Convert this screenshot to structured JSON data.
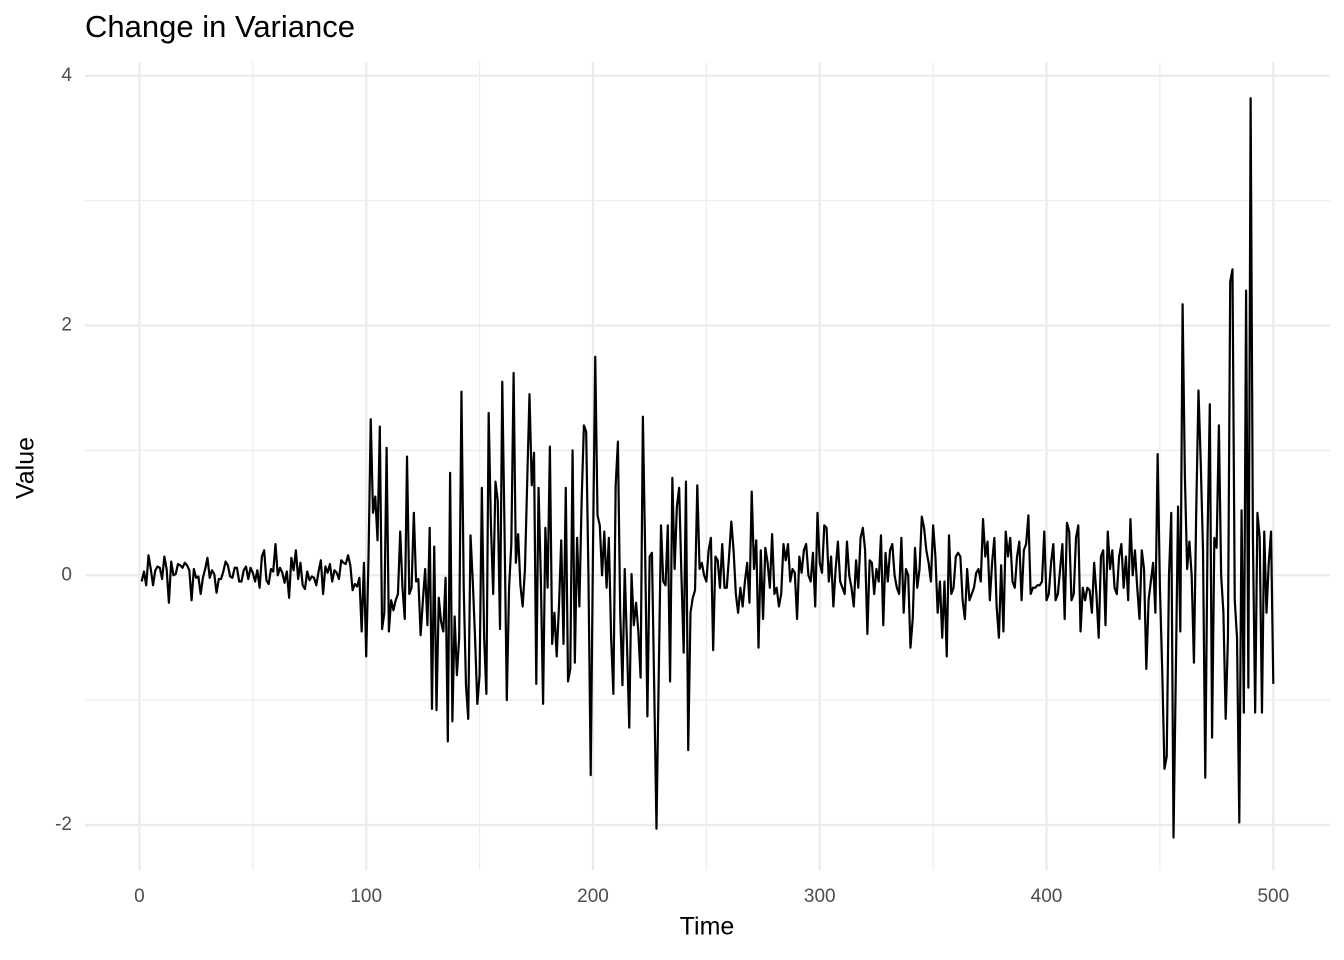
{
  "chart_data": {
    "type": "line",
    "title": "Change in Variance",
    "x_label": "Time",
    "y_label": "Value",
    "color": "#000000",
    "grid": true,
    "xlim": [
      -24,
      525
    ],
    "ylim": [
      -2.36,
      4.11
    ],
    "xticks": [
      0,
      100,
      200,
      300,
      400,
      500
    ],
    "yticks": [
      -2,
      0,
      2,
      4
    ],
    "x": [
      1,
      2,
      3,
      4,
      5,
      6,
      7,
      8,
      9,
      10,
      11,
      12,
      13,
      14,
      15,
      16,
      17,
      18,
      19,
      20,
      21,
      22,
      23,
      24,
      25,
      26,
      27,
      28,
      29,
      30,
      31,
      32,
      33,
      34,
      35,
      36,
      37,
      38,
      39,
      40,
      41,
      42,
      43,
      44,
      45,
      46,
      47,
      48,
      49,
      50,
      51,
      52,
      53,
      54,
      55,
      56,
      57,
      58,
      59,
      60,
      61,
      62,
      63,
      64,
      65,
      66,
      67,
      68,
      69,
      70,
      71,
      72,
      73,
      74,
      75,
      76,
      77,
      78,
      79,
      80,
      81,
      82,
      83,
      84,
      85,
      86,
      87,
      88,
      89,
      90,
      91,
      92,
      93,
      94,
      95,
      96,
      97,
      98,
      99,
      100,
      101,
      102,
      103,
      104,
      105,
      106,
      107,
      108,
      109,
      110,
      111,
      112,
      113,
      114,
      115,
      116,
      117,
      118,
      119,
      120,
      121,
      122,
      123,
      124,
      125,
      126,
      127,
      128,
      129,
      130,
      131,
      132,
      133,
      134,
      135,
      136,
      137,
      138,
      139,
      140,
      141,
      142,
      143,
      144,
      145,
      146,
      147,
      148,
      149,
      150,
      151,
      152,
      153,
      154,
      155,
      156,
      157,
      158,
      159,
      160,
      161,
      162,
      163,
      164,
      165,
      166,
      167,
      168,
      169,
      170,
      171,
      172,
      173,
      174,
      175,
      176,
      177,
      178,
      179,
      180,
      181,
      182,
      183,
      184,
      185,
      186,
      187,
      188,
      189,
      190,
      191,
      192,
      193,
      194,
      195,
      196,
      197,
      198,
      199,
      200,
      201,
      202,
      203,
      204,
      205,
      206,
      207,
      208,
      209,
      210,
      211,
      212,
      213,
      214,
      215,
      216,
      217,
      218,
      219,
      220,
      221,
      222,
      223,
      224,
      225,
      226,
      227,
      228,
      229,
      230,
      231,
      232,
      233,
      234,
      235,
      236,
      237,
      238,
      239,
      240,
      241,
      242,
      243,
      244,
      245,
      246,
      247,
      248,
      249,
      250,
      251,
      252,
      253,
      254,
      255,
      256,
      257,
      258,
      259,
      260,
      261,
      262,
      263,
      264,
      265,
      266,
      267,
      268,
      269,
      270,
      271,
      272,
      273,
      274,
      275,
      276,
      277,
      278,
      279,
      280,
      281,
      282,
      283,
      284,
      285,
      286,
      287,
      288,
      289,
      290,
      291,
      292,
      293,
      294,
      295,
      296,
      297,
      298,
      299,
      300,
      301,
      302,
      303,
      304,
      305,
      306,
      307,
      308,
      309,
      310,
      311,
      312,
      313,
      314,
      315,
      316,
      317,
      318,
      319,
      320,
      321,
      322,
      323,
      324,
      325,
      326,
      327,
      328,
      329,
      330,
      331,
      332,
      333,
      334,
      335,
      336,
      337,
      338,
      339,
      340,
      341,
      342,
      343,
      344,
      345,
      346,
      347,
      348,
      349,
      350,
      351,
      352,
      353,
      354,
      355,
      356,
      357,
      358,
      359,
      360,
      361,
      362,
      363,
      364,
      365,
      366,
      367,
      368,
      369,
      370,
      371,
      372,
      373,
      374,
      375,
      376,
      377,
      378,
      379,
      380,
      381,
      382,
      383,
      384,
      385,
      386,
      387,
      388,
      389,
      390,
      391,
      392,
      393,
      394,
      395,
      396,
      397,
      398,
      399,
      400,
      401,
      402,
      403,
      404,
      405,
      406,
      407,
      408,
      409,
      410,
      411,
      412,
      413,
      414,
      415,
      416,
      417,
      418,
      419,
      420,
      421,
      422,
      423,
      424,
      425,
      426,
      427,
      428,
      429,
      430,
      431,
      432,
      433,
      434,
      435,
      436,
      437,
      438,
      439,
      440,
      441,
      442,
      443,
      444,
      445,
      446,
      447,
      448,
      449,
      450,
      451,
      452,
      453,
      454,
      455,
      456,
      457,
      458,
      459,
      460,
      461,
      462,
      463,
      464,
      465,
      466,
      467,
      468,
      469,
      470,
      471,
      472,
      473,
      474,
      475,
      476,
      477,
      478,
      479,
      480,
      481,
      482,
      483,
      484,
      485,
      486,
      487,
      488,
      489,
      490,
      491,
      492,
      493,
      494,
      495,
      496,
      497,
      498,
      499,
      500
    ],
    "values": [
      -0.05,
      0.03,
      -0.08,
      0.16,
      0.05,
      -0.08,
      0.04,
      0.07,
      0.06,
      -0.03,
      0.15,
      0.05,
      -0.22,
      0.11,
      0.0,
      0.01,
      0.09,
      0.08,
      0.06,
      0.1,
      0.08,
      0.04,
      -0.2,
      0.05,
      -0.02,
      -0.01,
      -0.15,
      -0.02,
      0.05,
      0.14,
      -0.02,
      0.04,
      0.01,
      -0.14,
      -0.03,
      -0.03,
      0.03,
      0.11,
      0.08,
      -0.01,
      -0.02,
      0.06,
      0.06,
      -0.05,
      -0.05,
      0.04,
      0.07,
      -0.03,
      0.06,
      0.02,
      -0.05,
      0.04,
      -0.1,
      0.15,
      0.2,
      -0.04,
      -0.07,
      0.05,
      0.03,
      0.25,
      0.0,
      0.06,
      0.02,
      -0.06,
      0.03,
      -0.18,
      0.14,
      0.04,
      0.2,
      -0.03,
      0.1,
      -0.08,
      -0.11,
      0.03,
      -0.04,
      -0.01,
      -0.02,
      -0.08,
      0.03,
      0.12,
      -0.15,
      0.07,
      0.02,
      0.09,
      -0.05,
      0.04,
      0.02,
      -0.03,
      0.12,
      0.1,
      0.09,
      0.16,
      0.08,
      -0.12,
      -0.07,
      -0.09,
      -0.02,
      -0.45,
      0.1,
      -0.65,
      0.12,
      1.25,
      0.5,
      0.63,
      0.28,
      1.19,
      -0.43,
      -0.3,
      1.02,
      -0.45,
      -0.2,
      -0.28,
      -0.2,
      -0.15,
      0.35,
      -0.1,
      -0.35,
      0.95,
      -0.15,
      -0.1,
      0.5,
      -0.05,
      -0.03,
      -0.48,
      -0.2,
      0.05,
      -0.4,
      0.38,
      -1.07,
      0.23,
      -1.08,
      -0.18,
      -0.37,
      -0.45,
      -0.02,
      -1.33,
      0.82,
      -1.17,
      -0.33,
      -0.8,
      -0.5,
      1.47,
      -0.1,
      -0.88,
      -1.15,
      0.32,
      -0.05,
      -0.5,
      -1.03,
      -0.8,
      0.7,
      -0.5,
      -0.95,
      1.3,
      0.4,
      -0.15,
      0.75,
      0.6,
      -0.43,
      1.55,
      0.35,
      -1.0,
      -0.1,
      0.25,
      1.62,
      0.1,
      0.33,
      -0.08,
      -0.25,
      0.05,
      0.75,
      1.45,
      0.72,
      0.98,
      -0.87,
      0.7,
      -0.02,
      -1.03,
      0.38,
      -0.1,
      1.03,
      -0.55,
      -0.3,
      -0.65,
      -0.25,
      0.28,
      -0.55,
      0.7,
      -0.85,
      -0.75,
      1.0,
      -0.7,
      0.3,
      -0.25,
      0.6,
      1.2,
      1.15,
      0.0,
      -1.6,
      0.2,
      1.75,
      0.48,
      0.4,
      0.0,
      0.35,
      -0.1,
      0.3,
      -0.5,
      -0.95,
      0.72,
      1.07,
      -0.3,
      -0.88,
      0.05,
      -0.55,
      -1.22,
      0.01,
      -0.4,
      -0.22,
      -0.45,
      -0.82,
      1.27,
      0.2,
      -1.13,
      0.15,
      0.18,
      -0.9,
      -2.03,
      -0.8,
      0.4,
      -0.05,
      -0.08,
      0.4,
      -0.85,
      0.78,
      0.05,
      0.55,
      0.7,
      0.0,
      -0.62,
      0.75,
      -1.4,
      -0.3,
      -0.18,
      -0.12,
      0.72,
      0.05,
      0.1,
      0.0,
      -0.05,
      0.2,
      0.3,
      -0.6,
      0.15,
      0.12,
      -0.1,
      0.25,
      -0.1,
      -0.1,
      0.15,
      0.43,
      0.2,
      -0.15,
      -0.3,
      -0.1,
      -0.25,
      -0.05,
      0.1,
      -0.22,
      0.67,
      0.05,
      0.28,
      -0.58,
      0.2,
      -0.35,
      0.22,
      0.1,
      -0.1,
      0.33,
      -0.15,
      -0.1,
      -0.25,
      -0.15,
      0.25,
      0.12,
      0.25,
      -0.05,
      0.05,
      0.02,
      -0.35,
      0.15,
      0.02,
      0.2,
      0.25,
      0.0,
      -0.05,
      0.18,
      -0.25,
      0.5,
      0.1,
      0.02,
      0.4,
      0.38,
      -0.05,
      0.15,
      -0.25,
      0.05,
      0.27,
      -0.05,
      -0.1,
      -0.15,
      0.27,
      0.0,
      -0.1,
      -0.25,
      0.12,
      -0.1,
      0.3,
      0.38,
      0.2,
      -0.47,
      0.12,
      0.1,
      -0.15,
      0.05,
      -0.05,
      0.32,
      -0.4,
      0.18,
      -0.05,
      0.2,
      0.25,
      0.0,
      -0.1,
      -0.15,
      0.3,
      -0.3,
      0.05,
      0.0,
      -0.58,
      -0.35,
      0.22,
      -0.1,
      0.05,
      0.47,
      0.38,
      0.2,
      0.1,
      -0.05,
      0.4,
      0.15,
      -0.3,
      -0.05,
      -0.5,
      -0.05,
      -0.65,
      0.32,
      -0.15,
      -0.1,
      0.15,
      0.18,
      0.15,
      -0.2,
      -0.35,
      0.05,
      -0.2,
      -0.15,
      -0.1,
      0.02,
      0.05,
      -0.05,
      0.45,
      0.15,
      0.27,
      -0.2,
      0.1,
      0.3,
      -0.25,
      -0.5,
      0.08,
      -0.45,
      0.35,
      0.15,
      0.3,
      -0.05,
      -0.1,
      0.15,
      0.27,
      -0.2,
      0.2,
      0.25,
      0.48,
      -0.15,
      -0.1,
      -0.1,
      -0.08,
      -0.08,
      -0.05,
      0.35,
      -0.2,
      -0.15,
      0.1,
      0.25,
      -0.2,
      -0.15,
      0.05,
      0.25,
      -0.35,
      0.42,
      0.35,
      -0.2,
      -0.15,
      0.3,
      0.4,
      -0.45,
      -0.1,
      -0.2,
      -0.1,
      -0.12,
      -0.3,
      0.1,
      -0.15,
      -0.5,
      0.15,
      0.2,
      -0.4,
      0.35,
      0.05,
      0.2,
      -0.1,
      -0.15,
      0.15,
      0.25,
      -0.1,
      0.15,
      -0.2,
      0.45,
      0.0,
      0.2,
      -0.1,
      -0.35,
      0.2,
      0.05,
      -0.75,
      -0.2,
      -0.05,
      0.1,
      -0.3,
      0.97,
      -0.1,
      -0.75,
      -1.55,
      -1.45,
      0.0,
      0.5,
      -2.1,
      -0.8,
      0.55,
      -0.45,
      2.17,
      0.8,
      0.05,
      0.27,
      0.0,
      -0.7,
      0.5,
      1.48,
      0.9,
      0.2,
      -1.62,
      0.3,
      1.37,
      -1.3,
      0.3,
      0.22,
      1.2,
      0.0,
      -0.3,
      -1.15,
      -0.5,
      2.35,
      2.45,
      -0.2,
      -0.5,
      -1.98,
      0.52,
      -1.1,
      2.28,
      -0.9,
      3.82,
      0.3,
      -1.1,
      0.5,
      0.3,
      -1.1,
      0.35,
      -0.3,
      0.1,
      0.35,
      -0.87
    ]
  }
}
